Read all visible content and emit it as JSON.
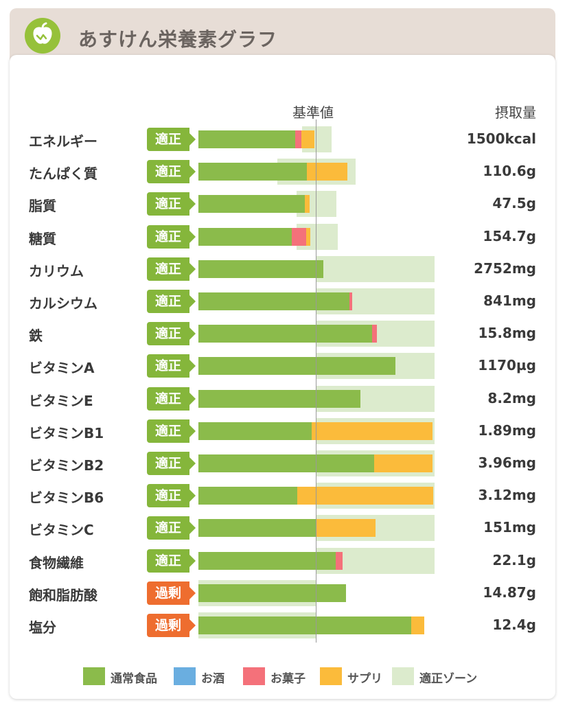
{
  "header": {
    "title": "あすけん栄養素グラフ",
    "logo_icon": "apple-icon"
  },
  "columns": {
    "reference": "基準値",
    "intake": "摂取量"
  },
  "colors": {
    "normal_food": "#8bbb4b",
    "alcohol": "#6aaee0",
    "sweets": "#f4717a",
    "supplement": "#fbbb3b",
    "zone": "#dcebcd",
    "badge_ok": "#85b63b",
    "badge_over": "#ee6d2f"
  },
  "legend": [
    {
      "label": "通常食品",
      "color": "#8bbb4b"
    },
    {
      "label": "お酒",
      "color": "#6aaee0"
    },
    {
      "label": "お菓子",
      "color": "#f4717a"
    },
    {
      "label": "サプリ",
      "color": "#fbbb3b"
    },
    {
      "label": "適正ゾーン",
      "color": "#dcebcd"
    }
  ],
  "chart_data": {
    "type": "bar",
    "orientation": "horizontal",
    "stacked": true,
    "unit": "% of 基準値",
    "reference_value": 100,
    "categories": [
      "エネルギー",
      "たんぱく質",
      "脂質",
      "糖質",
      "カリウム",
      "カルシウム",
      "鉄",
      "ビタミンA",
      "ビタミンE",
      "ビタミンB1",
      "ビタミンB2",
      "ビタミンB6",
      "ビタミンC",
      "食物繊維",
      "飽和脂肪酸",
      "塩分"
    ],
    "status": [
      "適正",
      "適正",
      "適正",
      "適正",
      "適正",
      "適正",
      "適正",
      "適正",
      "適正",
      "適正",
      "適正",
      "適正",
      "適正",
      "適正",
      "過剰",
      "過剰"
    ],
    "intake": [
      "1500kcal",
      "110.6g",
      "47.5g",
      "154.7g",
      "2752mg",
      "841mg",
      "15.8mg",
      "1170µg",
      "8.2mg",
      "1.89mg",
      "3.96mg",
      "3.12mg",
      "151mg",
      "22.1g",
      "14.87g",
      "12.4g"
    ],
    "series": [
      {
        "name": "通常食品",
        "values": [
          82,
          92,
          90,
          79,
          106,
          128,
          147,
          167,
          137,
          96,
          149,
          84,
          100,
          116,
          125,
          180
        ]
      },
      {
        "name": "お酒",
        "values": [
          0,
          0,
          0,
          0,
          0,
          0,
          0,
          0,
          0,
          0,
          0,
          0,
          0,
          0,
          0,
          0
        ]
      },
      {
        "name": "お菓子",
        "values": [
          5,
          0,
          0,
          12,
          0,
          2,
          4,
          0,
          0,
          0,
          0,
          0,
          0,
          6,
          0,
          0
        ]
      },
      {
        "name": "サプリ",
        "values": [
          11,
          34,
          4,
          4,
          0,
          0,
          0,
          0,
          0,
          102,
          49,
          115,
          50,
          0,
          0,
          11
        ]
      }
    ],
    "optimal_zone": [
      [
        88,
        113
      ],
      [
        67,
        133
      ],
      [
        83,
        117
      ],
      [
        83,
        118
      ],
      [
        100,
        200
      ],
      [
        100,
        200
      ],
      [
        100,
        200
      ],
      [
        100,
        200
      ],
      [
        100,
        200
      ],
      [
        100,
        200
      ],
      [
        100,
        200
      ],
      [
        100,
        200
      ],
      [
        100,
        200
      ],
      [
        100,
        200
      ],
      [
        0,
        100
      ],
      [
        0,
        100
      ]
    ]
  }
}
